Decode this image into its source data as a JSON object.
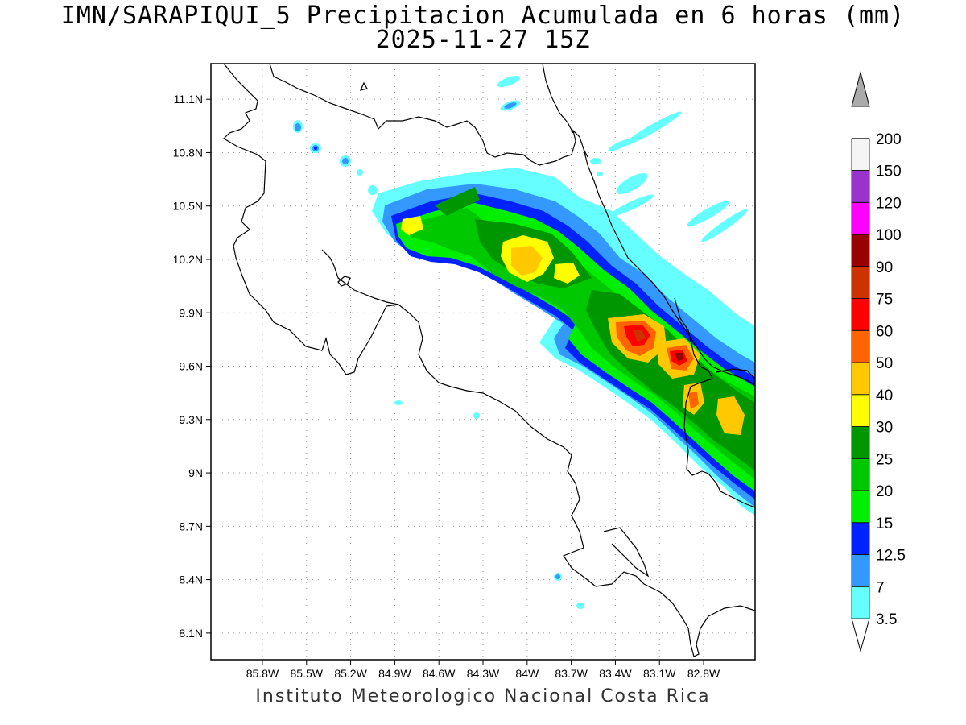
{
  "title": {
    "line1": "IMN/SARAPIQUI_5 Precipitacion Acumulada en 6 horas (mm)",
    "line2": "2025-11-27 15Z"
  },
  "footer": "Instituto Meteorologico Nacional Costa Rica",
  "map": {
    "lon_range": [
      -86.15,
      -82.45
    ],
    "lat_range": [
      7.95,
      11.3
    ],
    "lat_ticks": [
      "11.1N",
      "10.8N",
      "10.5N",
      "10.2N",
      "9.9N",
      "9.6N",
      "9.3N",
      "9N",
      "8.7N",
      "8.4N",
      "8.1N"
    ],
    "lat_values": [
      11.1,
      10.8,
      10.5,
      10.2,
      9.9,
      9.6,
      9.3,
      9.0,
      8.7,
      8.4,
      8.1
    ],
    "lon_ticks": [
      "85.8W",
      "85.5W",
      "85.2W",
      "84.9W",
      "84.6W",
      "84.3W",
      "84W",
      "83.7W",
      "83.4W",
      "83.1W",
      "82.8W"
    ],
    "lon_values": [
      -85.8,
      -85.5,
      -85.2,
      -84.9,
      -84.6,
      -84.3,
      -84.0,
      -83.7,
      -83.4,
      -83.1,
      -82.8
    ],
    "grid": true
  },
  "colorbar": {
    "levels": [
      "3.5",
      "7",
      "12.5",
      "15",
      "20",
      "25",
      "30",
      "40",
      "50",
      "60",
      "75",
      "90",
      "100",
      "120",
      "150",
      "200"
    ],
    "colors": [
      "#66ffff",
      "#3399ff",
      "#0022ff",
      "#00ee00",
      "#00c800",
      "#009600",
      "#ffff00",
      "#ffc800",
      "#ff6400",
      "#ff0000",
      "#cc3300",
      "#990000",
      "#ff00ff",
      "#9933cc",
      "#f5f5f5",
      "#aaaaaa"
    ]
  }
}
